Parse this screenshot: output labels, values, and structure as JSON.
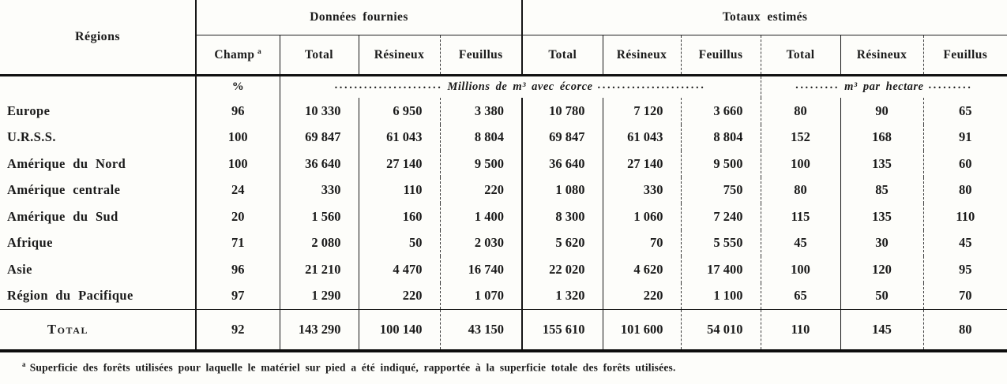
{
  "page": {
    "background": "#fdfdfa",
    "ink": "#1b1b1b"
  },
  "table": {
    "region_header": "Régions",
    "groups": [
      "Données fournies",
      "Totaux estimés"
    ],
    "sub_headers": [
      "Champ",
      "Total",
      "Résineux",
      "Feuillus",
      "Total",
      "Résineux",
      "Feuillus",
      "Total",
      "Résineux",
      "Feuillus"
    ],
    "champ_superscript": "a",
    "units": {
      "percent": "%",
      "leader_long": "......................",
      "millions": "Millions de m³ avec écorce",
      "leader_short": ".........",
      "per_hectare": "m³ par hectare"
    },
    "rows": [
      {
        "region": "Europe",
        "values": [
          "96",
          "10 330",
          "6 950",
          "3 380",
          "10 780",
          "7 120",
          "3 660",
          "80",
          "90",
          "65"
        ]
      },
      {
        "region": "U.R.S.S.",
        "values": [
          "100",
          "69 847",
          "61 043",
          "8 804",
          "69 847",
          "61 043",
          "8 804",
          "152",
          "168",
          "91"
        ]
      },
      {
        "region": "Amérique du Nord",
        "values": [
          "100",
          "36 640",
          "27 140",
          "9 500",
          "36 640",
          "27 140",
          "9 500",
          "100",
          "135",
          "60"
        ]
      },
      {
        "region": "Amérique centrale",
        "values": [
          "24",
          "330",
          "110",
          "220",
          "1 080",
          "330",
          "750",
          "80",
          "85",
          "80"
        ]
      },
      {
        "region": "Amérique du Sud",
        "values": [
          "20",
          "1 560",
          "160",
          "1 400",
          "8 300",
          "1 060",
          "7 240",
          "115",
          "135",
          "110"
        ]
      },
      {
        "region": "Afrique",
        "values": [
          "71",
          "2 080",
          "50",
          "2 030",
          "5 620",
          "70",
          "5 550",
          "45",
          "30",
          "45"
        ]
      },
      {
        "region": "Asie",
        "values": [
          "96",
          "21 210",
          "4 470",
          "16 740",
          "22 020",
          "4 620",
          "17 400",
          "100",
          "120",
          "95"
        ]
      },
      {
        "region": "Région du Pacifique",
        "values": [
          "97",
          "1 290",
          "220",
          "1 070",
          "1 320",
          "220",
          "1 100",
          "65",
          "50",
          "70"
        ]
      }
    ],
    "total_row": {
      "label": "Total",
      "values": [
        "92",
        "143 290",
        "100 140",
        "43 150",
        "155 610",
        "101 600",
        "54 010",
        "110",
        "145",
        "80"
      ]
    },
    "footnote": {
      "marker": "a",
      "text": "Superficie des forêts utilisées pour laquelle le matériel sur pied a été indiqué, rapportée à la superficie totale des forêts utilisées."
    }
  }
}
